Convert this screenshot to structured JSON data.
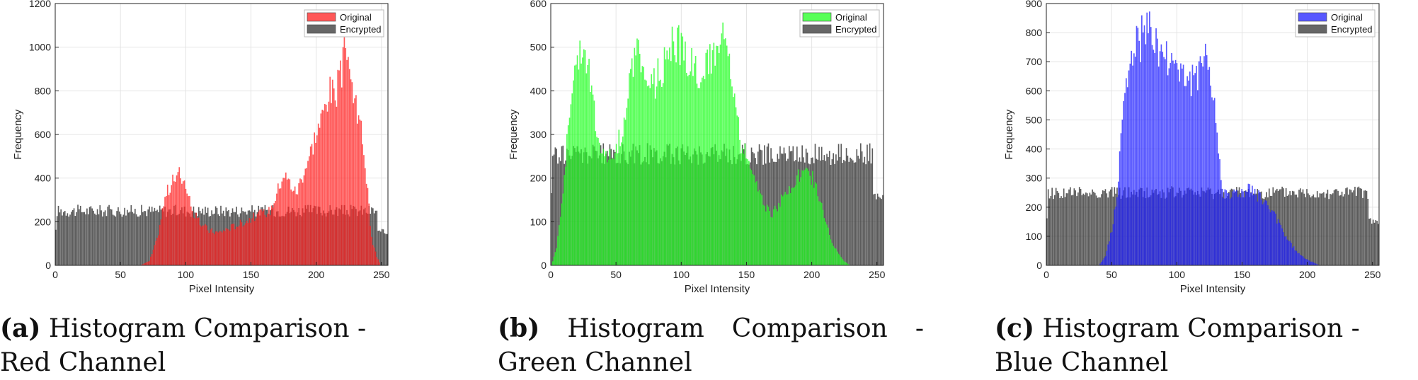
{
  "figures": [
    {
      "caption_label": "(a)",
      "caption_text": "Histogram Comparison - Red Channel",
      "chart_index": 0
    },
    {
      "caption_label": "(b)",
      "caption_text": "Histogram Comparison - Green Channel",
      "chart_index": 1
    },
    {
      "caption_label": "(c)",
      "caption_text": "Histogram Comparison - Blue Channel",
      "chart_index": 2
    }
  ],
  "chart_data": [
    {
      "type": "bar",
      "xlabel": "Pixel Intensity",
      "ylabel": "Frequency",
      "xlim": [
        0,
        255
      ],
      "ylim": [
        0,
        1200
      ],
      "xticks": [
        0,
        50,
        100,
        150,
        200,
        250
      ],
      "yticks": [
        0,
        200,
        400,
        600,
        800,
        1000,
        1200
      ],
      "grid": true,
      "legend_position": "top-right",
      "series": [
        {
          "name": "Original",
          "color": "#ff2020",
          "profile": [
            [
              0,
              0
            ],
            [
              65,
              0
            ],
            [
              72,
              20
            ],
            [
              78,
              120
            ],
            [
              82,
              250
            ],
            [
              85,
              330
            ],
            [
              90,
              380
            ],
            [
              95,
              420
            ],
            [
              100,
              380
            ],
            [
              104,
              260
            ],
            [
              110,
              200
            ],
            [
              118,
              160
            ],
            [
              125,
              150
            ],
            [
              135,
              175
            ],
            [
              145,
              200
            ],
            [
              155,
              230
            ],
            [
              165,
              250
            ],
            [
              170,
              330
            ],
            [
              175,
              420
            ],
            [
              180,
              380
            ],
            [
              185,
              330
            ],
            [
              190,
              420
            ],
            [
              195,
              500
            ],
            [
              200,
              600
            ],
            [
              205,
              680
            ],
            [
              210,
              800
            ],
            [
              215,
              780
            ],
            [
              220,
              880
            ],
            [
              224,
              1030
            ],
            [
              227,
              850
            ],
            [
              232,
              680
            ],
            [
              236,
              600
            ],
            [
              240,
              330
            ],
            [
              243,
              120
            ],
            [
              247,
              40
            ],
            [
              250,
              0
            ],
            [
              255,
              0
            ]
          ]
        },
        {
          "name": "Encrypted",
          "color": "#333333",
          "profile": [
            [
              0,
              250
            ],
            [
              255,
              250
            ]
          ],
          "noise": 28
        }
      ]
    },
    {
      "type": "bar",
      "xlabel": "Pixel Intensity",
      "ylabel": "Frequency",
      "xlim": [
        0,
        255
      ],
      "ylim": [
        0,
        600
      ],
      "xticks": [
        0,
        50,
        100,
        150,
        200,
        250
      ],
      "yticks": [
        0,
        100,
        200,
        300,
        400,
        500,
        600
      ],
      "grid": true,
      "legend_position": "top-right",
      "series": [
        {
          "name": "Original",
          "color": "#20ff20",
          "profile": [
            [
              0,
              0
            ],
            [
              4,
              40
            ],
            [
              8,
              150
            ],
            [
              12,
              280
            ],
            [
              16,
              420
            ],
            [
              20,
              480
            ],
            [
              25,
              520
            ],
            [
              30,
              420
            ],
            [
              35,
              300
            ],
            [
              40,
              260
            ],
            [
              45,
              250
            ],
            [
              50,
              260
            ],
            [
              55,
              320
            ],
            [
              60,
              420
            ],
            [
              65,
              480
            ],
            [
              70,
              470
            ],
            [
              75,
              400
            ],
            [
              80,
              420
            ],
            [
              85,
              450
            ],
            [
              90,
              500
            ],
            [
              95,
              520
            ],
            [
              100,
              500
            ],
            [
              105,
              470
            ],
            [
              110,
              470
            ],
            [
              115,
              430
            ],
            [
              120,
              450
            ],
            [
              125,
              500
            ],
            [
              130,
              520
            ],
            [
              135,
              500
            ],
            [
              140,
              400
            ],
            [
              145,
              290
            ],
            [
              150,
              250
            ],
            [
              155,
              220
            ],
            [
              160,
              180
            ],
            [
              165,
              130
            ],
            [
              170,
              120
            ],
            [
              175,
              140
            ],
            [
              180,
              160
            ],
            [
              185,
              180
            ],
            [
              190,
              200
            ],
            [
              195,
              215
            ],
            [
              200,
              205
            ],
            [
              205,
              170
            ],
            [
              210,
              110
            ],
            [
              215,
              60
            ],
            [
              220,
              30
            ],
            [
              225,
              10
            ],
            [
              230,
              0
            ],
            [
              255,
              0
            ]
          ]
        },
        {
          "name": "Encrypted",
          "color": "#333333",
          "profile": [
            [
              0,
              255
            ],
            [
              255,
              255
            ]
          ],
          "noise": 25
        }
      ]
    },
    {
      "type": "bar",
      "xlabel": "Pixel Intensity",
      "ylabel": "Frequency",
      "xlim": [
        0,
        255
      ],
      "ylim": [
        0,
        900
      ],
      "xticks": [
        0,
        50,
        100,
        150,
        200,
        250
      ],
      "yticks": [
        0,
        100,
        200,
        300,
        400,
        500,
        600,
        700,
        800,
        900
      ],
      "grid": true,
      "legend_position": "top-right",
      "series": [
        {
          "name": "Original",
          "color": "#2020ff",
          "profile": [
            [
              0,
              0
            ],
            [
              40,
              0
            ],
            [
              45,
              30
            ],
            [
              50,
              120
            ],
            [
              54,
              250
            ],
            [
              57,
              420
            ],
            [
              60,
              580
            ],
            [
              65,
              700
            ],
            [
              70,
              760
            ],
            [
              75,
              800
            ],
            [
              78,
              830
            ],
            [
              82,
              780
            ],
            [
              85,
              740
            ],
            [
              90,
              720
            ],
            [
              95,
              710
            ],
            [
              100,
              690
            ],
            [
              105,
              660
            ],
            [
              110,
              620
            ],
            [
              115,
              640
            ],
            [
              118,
              720
            ],
            [
              121,
              760
            ],
            [
              125,
              660
            ],
            [
              130,
              500
            ],
            [
              133,
              340
            ],
            [
              136,
              250
            ],
            [
              140,
              250
            ],
            [
              145,
              240
            ],
            [
              150,
              250
            ],
            [
              155,
              260
            ],
            [
              160,
              250
            ],
            [
              165,
              230
            ],
            [
              170,
              200
            ],
            [
              175,
              170
            ],
            [
              180,
              130
            ],
            [
              185,
              90
            ],
            [
              190,
              60
            ],
            [
              195,
              35
            ],
            [
              200,
              20
            ],
            [
              205,
              10
            ],
            [
              210,
              0
            ],
            [
              255,
              0
            ]
          ]
        },
        {
          "name": "Encrypted",
          "color": "#333333",
          "profile": [
            [
              0,
              250
            ],
            [
              255,
              250
            ]
          ],
          "noise": 22
        }
      ]
    }
  ]
}
